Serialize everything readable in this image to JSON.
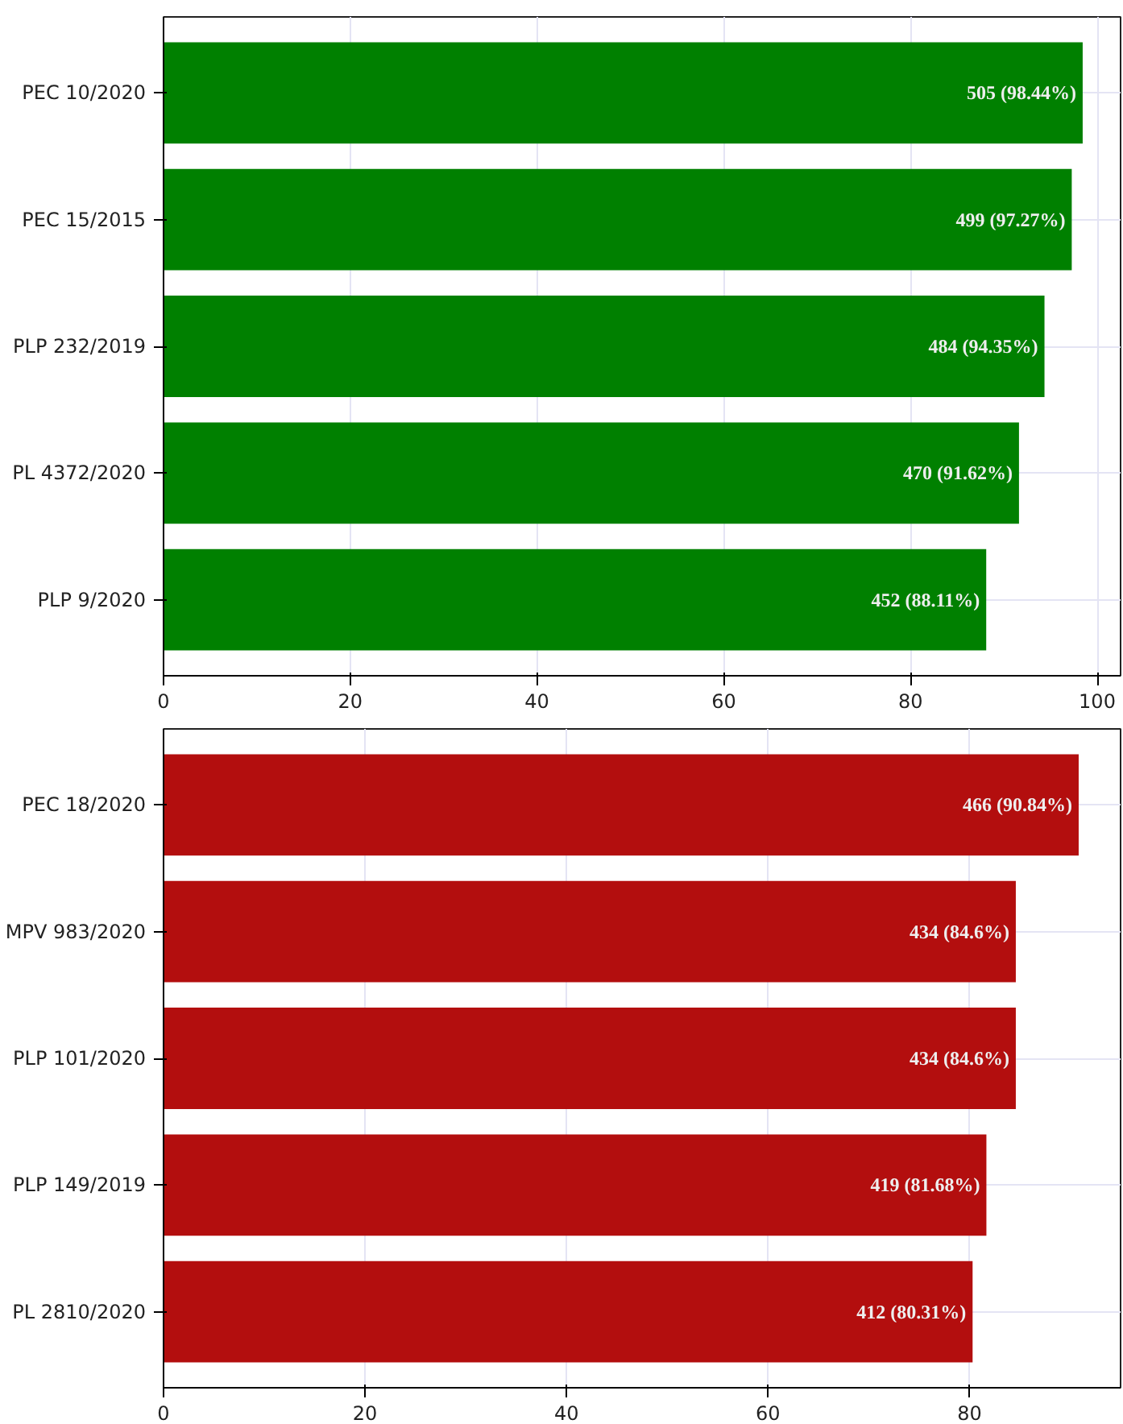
{
  "chart_data": [
    {
      "type": "bar",
      "orientation": "horizontal",
      "categories": [
        "PEC 10/2020",
        "PEC 15/2015",
        "PLP 232/2019",
        "PL 4372/2020",
        "PLP 9/2020"
      ],
      "values": [
        98.44,
        97.27,
        94.35,
        91.62,
        88.11
      ],
      "value_labels": [
        "505 (98.44%)",
        "499 (97.27%)",
        "484 (94.35%)",
        "470 (91.62%)",
        "452 (88.11%)"
      ],
      "color": "#008000",
      "xlim": [
        0,
        102.5
      ],
      "xticks": [
        0,
        20,
        40,
        60,
        80,
        100
      ],
      "grid": true
    },
    {
      "type": "bar",
      "orientation": "horizontal",
      "categories": [
        "PEC 18/2020",
        "MPV 983/2020",
        "PLP 101/2020",
        "PLP 149/2019",
        "PL 2810/2020"
      ],
      "values": [
        90.84,
        84.6,
        84.6,
        81.68,
        80.31
      ],
      "value_labels": [
        "466 (90.84%)",
        "434 (84.6%)",
        "434 (84.6%)",
        "419 (81.68%)",
        "412 (80.31%)"
      ],
      "color": "#b30e0e",
      "xlim": [
        0,
        95
      ],
      "xticks": [
        0,
        20,
        40,
        60,
        80
      ],
      "grid": true
    }
  ]
}
